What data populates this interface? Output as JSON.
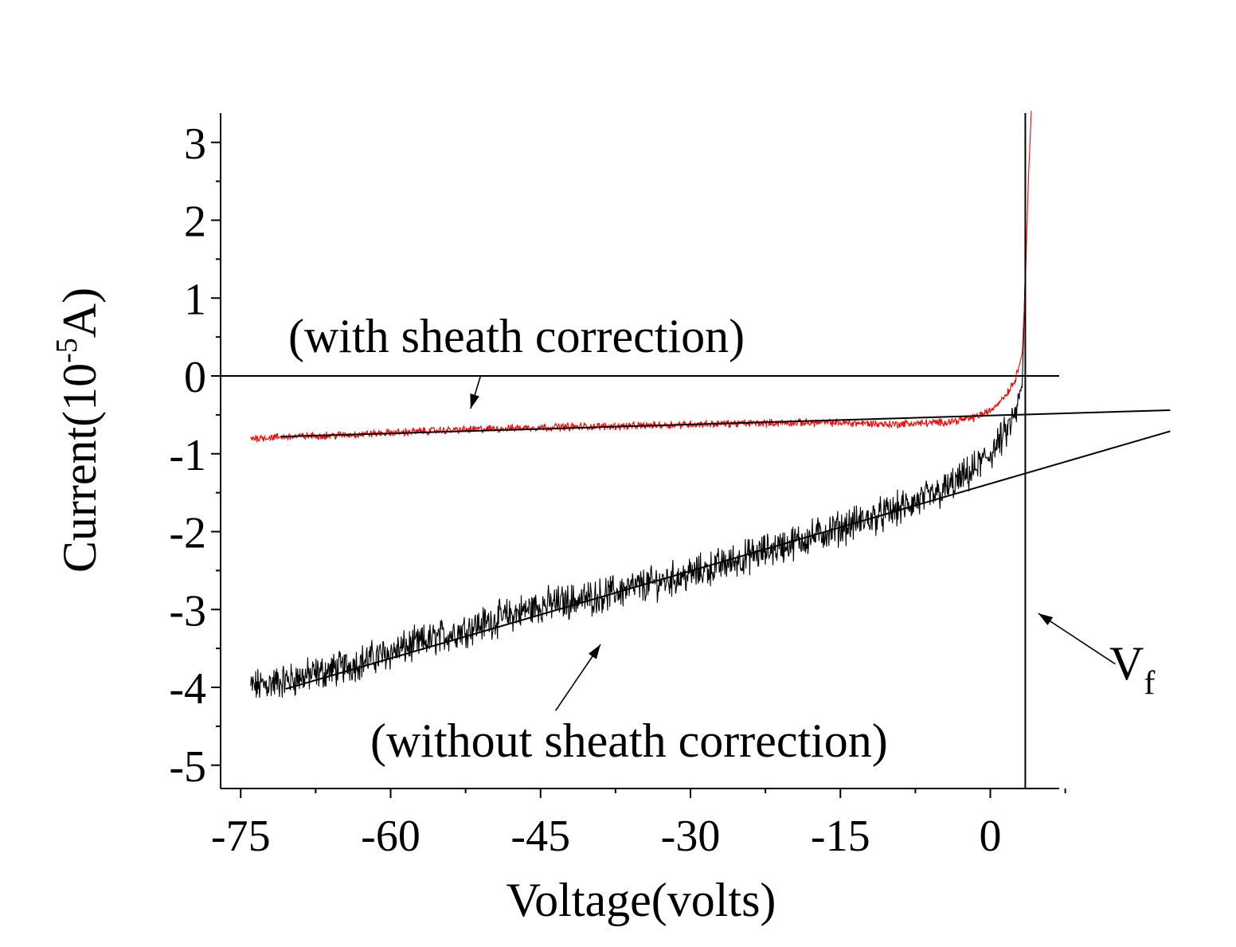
{
  "chart_data": {
    "type": "line",
    "title": "",
    "xlabel": "Voltage(volts)",
    "ylabel": {
      "prefix": "Current(10",
      "exponent": "-5",
      "suffix": "A)"
    },
    "xlim": [
      -76,
      9
    ],
    "ylim": [
      -5.3,
      3.4
    ],
    "x_ticks": [
      -75,
      -60,
      -45,
      -30,
      -15,
      0
    ],
    "x_tick_labels": [
      "-75",
      "-60",
      "-45",
      "-30",
      "-15",
      "0"
    ],
    "y_ticks": [
      3,
      2,
      1,
      0,
      -1,
      -2,
      -3,
      -4,
      -5
    ],
    "y_tick_labels": [
      "3",
      "2",
      "1",
      "0",
      "-1",
      "-2",
      "-3",
      "-4",
      "-5"
    ],
    "zero_line": 0,
    "floating_potential": 3.5,
    "series": [
      {
        "name": "with sheath correction",
        "color": "#ff0000",
        "x": [
          -74,
          -70,
          -65,
          -60,
          -55,
          -50,
          -45,
          -40,
          -35,
          -30,
          -25,
          -20,
          -15,
          -10,
          -5,
          -2,
          0,
          1.5,
          2.5,
          3.2,
          3.5,
          3.8,
          4.1
        ],
        "y": [
          -0.8,
          -0.78,
          -0.76,
          -0.73,
          -0.7,
          -0.68,
          -0.66,
          -0.65,
          -0.64,
          -0.62,
          -0.61,
          -0.6,
          -0.6,
          -0.62,
          -0.6,
          -0.55,
          -0.45,
          -0.25,
          -0.05,
          0.3,
          1.2,
          2.5,
          3.4
        ],
        "noise": 0.04
      },
      {
        "name": "without sheath correction",
        "color": "#000000",
        "x": [
          -74,
          -70,
          -65,
          -60,
          -55,
          -50,
          -45,
          -40,
          -35,
          -30,
          -25,
          -20,
          -15,
          -10,
          -5,
          -2,
          0,
          1.5,
          2.5,
          3.2,
          3.5
        ],
        "y": [
          -4.0,
          -3.9,
          -3.75,
          -3.55,
          -3.35,
          -3.15,
          -2.95,
          -2.85,
          -2.7,
          -2.55,
          -2.35,
          -2.15,
          -1.95,
          -1.75,
          -1.5,
          -1.25,
          -1.0,
          -0.75,
          -0.5,
          -0.1,
          1.3
        ],
        "noise": 0.18
      }
    ],
    "fit_lines": [
      {
        "name": "fit with sheath correction",
        "x": [
          -71,
          18
        ],
        "y": [
          -0.78,
          -0.44
        ]
      },
      {
        "name": "fit without sheath correction",
        "x": [
          -70.5,
          18
        ],
        "y": [
          -4.02,
          -0.71
        ]
      }
    ],
    "annotations": [
      {
        "text": "(with sheath correction)",
        "x": -58,
        "y": 0.5,
        "arrow_to": [
          -52,
          -0.42
        ],
        "arrow_from": [
          -51,
          0.0
        ]
      },
      {
        "text": "(without sheath correction)",
        "x": -62,
        "y": -4.6,
        "arrow_to": [
          -39,
          -3.45
        ],
        "arrow_from": [
          -43.5,
          -4.3
        ]
      },
      {
        "text": "V",
        "subscript": "f",
        "arrow_to": [
          4.8,
          -3.05
        ],
        "arrow_from": [
          12.5,
          -3.7
        ]
      }
    ]
  }
}
